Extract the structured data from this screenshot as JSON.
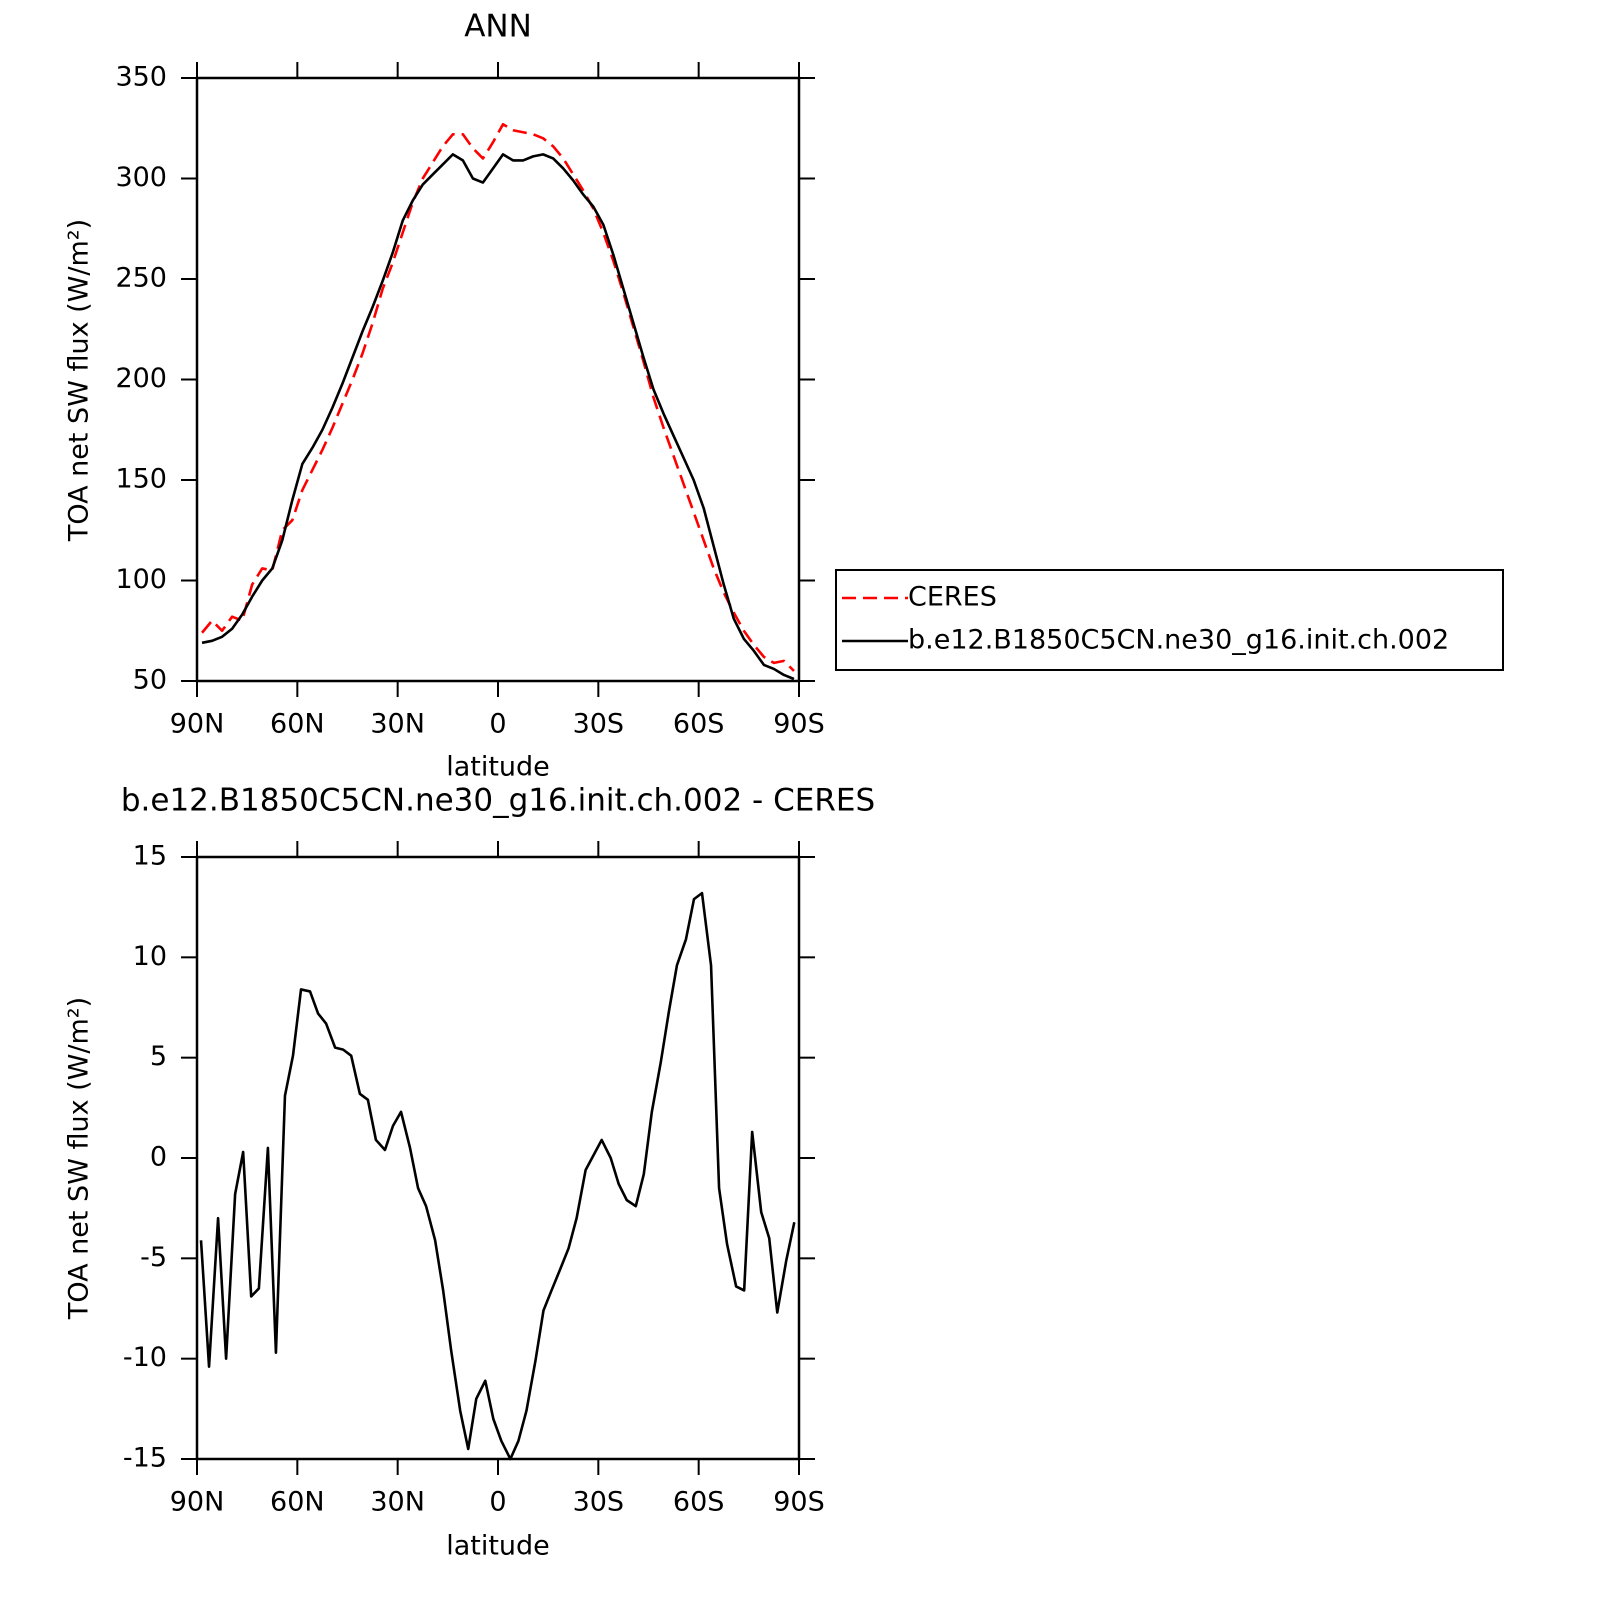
{
  "chart_data": [
    {
      "type": "line",
      "title": "ANN",
      "x_label": "latitude",
      "y_label": "TOA net SW flux (W/m²)",
      "x": [
        88.5,
        85.5,
        82.5,
        79.5,
        76.5,
        73.5,
        70.5,
        67.5,
        64.5,
        61.5,
        58.5,
        55.5,
        52.5,
        49.5,
        46.5,
        43.5,
        40.5,
        37.5,
        34.5,
        31.5,
        28.5,
        25.5,
        22.5,
        19.5,
        16.5,
        13.5,
        10.5,
        7.5,
        4.5,
        1.5,
        -1.5,
        -4.5,
        -7.5,
        -10.5,
        -13.5,
        -16.5,
        -19.5,
        -22.5,
        -25.5,
        -28.5,
        -31.5,
        -34.5,
        -37.5,
        -40.5,
        -43.5,
        -46.5,
        -49.5,
        -52.5,
        -55.5,
        -58.5,
        -61.5,
        -64.5,
        -67.5,
        -70.5,
        -73.5,
        -76.5,
        -79.5,
        -82.5,
        -85.5,
        -88.5
      ],
      "series": [
        {
          "name": "CERES",
          "color": "#ff0000",
          "dashed": true,
          "values": [
            74,
            80,
            75,
            82,
            80,
            98,
            106,
            105,
            125,
            130,
            145,
            155,
            165,
            176,
            188,
            200,
            213,
            228,
            245,
            258,
            273,
            288,
            300,
            308,
            316,
            322,
            322,
            315,
            310,
            318,
            327,
            324,
            323,
            322,
            320,
            316,
            310,
            302,
            294,
            285,
            273,
            259,
            243,
            226,
            209,
            191,
            176,
            162,
            148,
            134,
            120,
            106,
            94,
            84,
            75,
            68,
            62,
            59,
            60,
            55
          ]
        },
        {
          "name": "b.e12.B1850C5CN.ne30_g16.init.ch.002",
          "color": "#000000",
          "dashed": false,
          "values": [
            69,
            70,
            72,
            76,
            83,
            92,
            100,
            106,
            120,
            140,
            158,
            166,
            175,
            186,
            198,
            211,
            224,
            236,
            249,
            263,
            279,
            289,
            297,
            302,
            307,
            312,
            309,
            300,
            298,
            305,
            312,
            309,
            309,
            311,
            312,
            310,
            305,
            299,
            292,
            286,
            277,
            262,
            245,
            228,
            211,
            195,
            183,
            172,
            161,
            150,
            136,
            117,
            98,
            81,
            71,
            65,
            58,
            56,
            53,
            51
          ]
        }
      ],
      "xlim": [
        90,
        -90
      ],
      "xticks": [
        {
          "value": 90,
          "label": "90N"
        },
        {
          "value": 60,
          "label": "60N"
        },
        {
          "value": 30,
          "label": "30N"
        },
        0,
        {
          "value": -30,
          "label": "30S"
        },
        {
          "value": -60,
          "label": "60S"
        },
        {
          "value": -90,
          "label": "90S"
        }
      ],
      "ylim": [
        50,
        350
      ],
      "yticks": [
        50,
        100,
        150,
        200,
        250,
        300,
        350
      ],
      "grid": false,
      "legend": "right"
    },
    {
      "type": "line",
      "title": "b.e12.B1850C5CN.ne30_g16.init.ch.002 - CERES",
      "x_label": "latitude",
      "y_label": "TOA net SW flux (W/m²)",
      "x": [
        88.8,
        86.4,
        83.7,
        81.3,
        78.6,
        76.2,
        73.8,
        71.5,
        68.8,
        66.4,
        63.7,
        61.3,
        58.9,
        56.2,
        53.8,
        51.4,
        48.7,
        46.3,
        43.9,
        41.3,
        38.9,
        36.5,
        33.8,
        31.4,
        29.0,
        26.3,
        23.9,
        21.5,
        18.8,
        16.4,
        14.0,
        11.3,
        8.9,
        6.5,
        3.8,
        1.4,
        -1.0,
        -3.7,
        -6.1,
        -8.5,
        -11.2,
        -13.6,
        -16.0,
        -18.7,
        -21.1,
        -23.5,
        -26.2,
        -28.6,
        -31.0,
        -33.7,
        -36.1,
        -38.5,
        -41.2,
        -43.6,
        -46.0,
        -48.7,
        -51.1,
        -53.5,
        -56.2,
        -58.6,
        -61.0,
        -63.7,
        -66.1,
        -68.5,
        -71.2,
        -73.6,
        -76.0,
        -78.7,
        -81.1,
        -83.5,
        -86.2,
        -88.6
      ],
      "series": [
        {
          "color": "#000000",
          "dashed": false,
          "values": [
            -4.1,
            -10.4,
            -3.0,
            -10,
            -1.8,
            0.3,
            -6.9,
            -6.5,
            0.5,
            -9.7,
            3.1,
            5.1,
            8.4,
            8.3,
            7.2,
            6.7,
            5.5,
            5.4,
            5.1,
            3.2,
            2.9,
            0.9,
            0.4,
            1.6,
            2.3,
            0.5,
            -1.5,
            -2.4,
            -4.1,
            -6.6,
            -9.6,
            -12.6,
            -14.5,
            -12,
            -11.1,
            -13,
            -14.1,
            -15,
            -14.1,
            -12.6,
            -10.1,
            -7.6,
            -6.6,
            -5.5,
            -4.5,
            -3.0,
            -0.6,
            0.15,
            0.9,
            0,
            -1.3,
            -2.1,
            -2.4,
            -0.8,
            2.3,
            4.8,
            7.3,
            9.6,
            10.9,
            12.9,
            13.2,
            9.6,
            -1.5,
            -4.3,
            -6.4,
            -6.6,
            1.3,
            -2.7,
            -4.0,
            -7.7,
            -5.1,
            -3.2
          ]
        }
      ],
      "xlim": [
        90,
        -90
      ],
      "xticks": [
        {
          "value": 90,
          "label": "90N"
        },
        {
          "value": 60,
          "label": "60N"
        },
        {
          "value": 30,
          "label": "30N"
        },
        0,
        {
          "value": -30,
          "label": "30S"
        },
        {
          "value": -60,
          "label": "60S"
        },
        {
          "value": -90,
          "label": "90S"
        }
      ],
      "ylim": [
        -15,
        15
      ],
      "yticks": [
        -15,
        -10,
        -5,
        0,
        5,
        10,
        15
      ],
      "grid": false
    }
  ]
}
